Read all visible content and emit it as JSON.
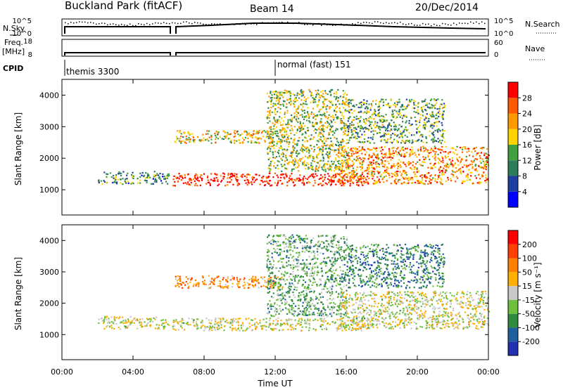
{
  "header": {
    "station": "Buckland Park (fitACF)",
    "beam": "Beam 14",
    "date": "20/Dec/2014"
  },
  "top_panel": {
    "nsky_label": "N.Sky",
    "nsky_ticks": [
      "10^5",
      "10^0"
    ],
    "nsearch_label": "N.Search",
    "nsearch_ticks": [
      "10^5",
      "10^0"
    ],
    "freq_label": "Freq.",
    "freq_unit": "[MHz]",
    "freq_ticks": [
      "18",
      "8"
    ],
    "nave_label": "Nave",
    "nave_ticks": [
      "60",
      "0"
    ],
    "cpid_label": "CPID",
    "cpid_entries": [
      {
        "name": "themis 3300",
        "start_hour": 0,
        "end_hour": 12
      },
      {
        "name": "normal (fast) 151",
        "start_hour": 12,
        "end_hour": 24
      }
    ]
  },
  "colors": {
    "power_scale": [
      "#0000ff",
      "#1f3fa0",
      "#2e7d5a",
      "#40a040",
      "#ffd400",
      "#ff9900",
      "#ff5a00",
      "#ff0000"
    ],
    "velocity_scale": [
      "#2030b0",
      "#1f5fa0",
      "#2e8b40",
      "#70c040",
      "#c8c8c8",
      "#ffb000",
      "#ff8000",
      "#ff4000",
      "#ff0000"
    ],
    "ground_scatter": "#c0c0c0"
  },
  "chart_data": [
    {
      "type": "heatmap",
      "name": "power",
      "xlabel": "",
      "ylabel": "Slant Range [km]",
      "xlim": [
        0,
        24
      ],
      "ylim": [
        200,
        4500
      ],
      "yticks": [
        "1000",
        "2000",
        "3000",
        "4000"
      ],
      "colorbar": {
        "label": "Power [dB]",
        "ticks": [
          "4",
          "8",
          "12",
          "16",
          "20",
          "24",
          "28"
        ]
      },
      "echo_bands": [
        {
          "start_hour": 2.0,
          "end_hour": 6.0,
          "range_low": 1200,
          "range_high": 1600,
          "level": 0.35
        },
        {
          "start_hour": 6.2,
          "end_hour": 17.5,
          "range_low": 1150,
          "range_high": 1550,
          "level": 0.95
        },
        {
          "start_hour": 6.3,
          "end_hour": 12.5,
          "range_low": 2500,
          "range_high": 2900,
          "level": 0.6
        },
        {
          "start_hour": 11.5,
          "end_hour": 16.0,
          "range_low": 1600,
          "range_high": 4200,
          "level": 0.5
        },
        {
          "start_hour": 15.5,
          "end_hour": 24.0,
          "range_low": 1200,
          "range_high": 2400,
          "level": 0.7
        },
        {
          "start_hour": 16.0,
          "end_hour": 21.5,
          "range_low": 2500,
          "range_high": 3900,
          "level": 0.4
        }
      ]
    },
    {
      "type": "heatmap",
      "name": "velocity",
      "xlabel": "Time UT",
      "ylabel": "Slant Range [km]",
      "xlim": [
        0,
        24
      ],
      "ylim": [
        200,
        4500
      ],
      "xticks": [
        "00:00",
        "04:00",
        "08:00",
        "12:00",
        "16:00",
        "20:00",
        "00:00"
      ],
      "yticks": [
        "1000",
        "2000",
        "3000",
        "4000"
      ],
      "colorbar": {
        "label": "Velocity [m s⁻¹]",
        "ticks": [
          "200",
          "100",
          "50",
          "15",
          "-15",
          "-50",
          "-100",
          "-200"
        ]
      },
      "echo_bands": [
        {
          "start_hour": 2.0,
          "end_hour": 6.0,
          "range_low": 1200,
          "range_high": 1600,
          "level": 0.5
        },
        {
          "start_hour": 6.2,
          "end_hour": 17.5,
          "range_low": 1150,
          "range_high": 1550,
          "level": 0.5
        },
        {
          "start_hour": 6.3,
          "end_hour": 12.5,
          "range_low": 2500,
          "range_high": 2900,
          "level": 0.7
        },
        {
          "start_hour": 11.5,
          "end_hour": 16.0,
          "range_low": 1600,
          "range_high": 4200,
          "level": 0.35
        },
        {
          "start_hour": 15.5,
          "end_hour": 24.0,
          "range_low": 1200,
          "range_high": 2400,
          "level": 0.5
        },
        {
          "start_hour": 16.0,
          "end_hour": 21.5,
          "range_low": 2500,
          "range_high": 3900,
          "level": 0.25
        }
      ]
    }
  ]
}
